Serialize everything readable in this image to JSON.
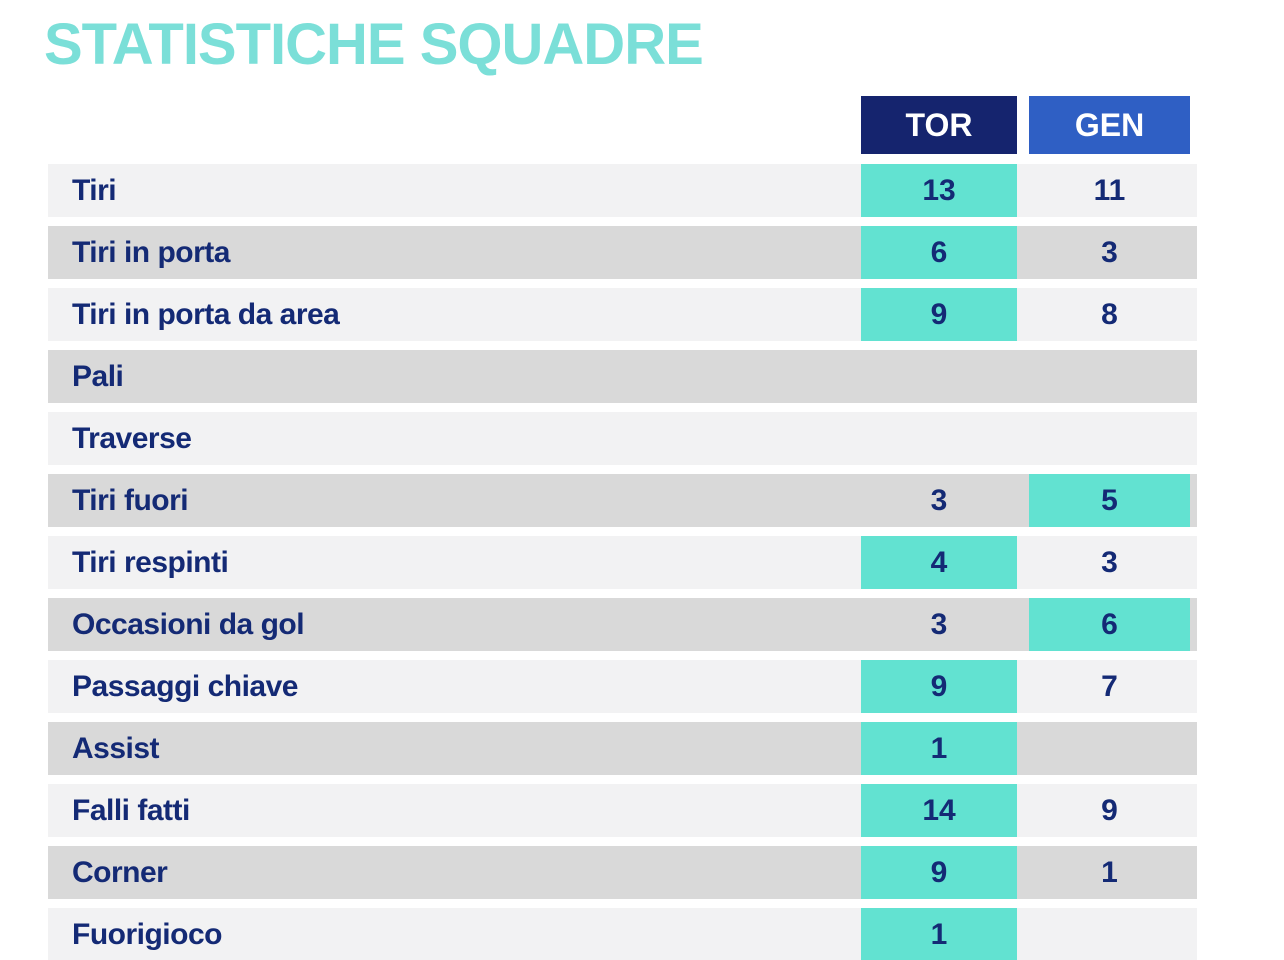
{
  "title": "STATISTICHE SQUADRE",
  "columns": {
    "home": "TOR",
    "away": "GEN"
  },
  "colors": {
    "title_teal": "#7BDFD8",
    "highlight_teal": "#62E2D1",
    "navy_text": "#142A75",
    "tor_header_bg": "#15246E",
    "gen_header_bg": "#2F5FC4",
    "row_light": "#F2F2F3",
    "row_dark": "#D9D9D9"
  },
  "chart_data": {
    "type": "table",
    "title": "STATISTICHE SQUADRE",
    "columns": [
      "TOR",
      "GEN"
    ],
    "legend_note": "teal highlight marks the higher value",
    "rows": [
      {
        "label": "Tiri",
        "tor": "13",
        "gen": "11",
        "highlight": "tor"
      },
      {
        "label": "Tiri in porta",
        "tor": "6",
        "gen": "3",
        "highlight": "tor"
      },
      {
        "label": "Tiri in porta da area",
        "tor": "9",
        "gen": "8",
        "highlight": "tor"
      },
      {
        "label": "Pali",
        "tor": "",
        "gen": "",
        "highlight": "none"
      },
      {
        "label": "Traverse",
        "tor": "",
        "gen": "",
        "highlight": "none"
      },
      {
        "label": "Tiri fuori",
        "tor": "3",
        "gen": "5",
        "highlight": "gen"
      },
      {
        "label": "Tiri respinti",
        "tor": "4",
        "gen": "3",
        "highlight": "tor"
      },
      {
        "label": "Occasioni da gol",
        "tor": "3",
        "gen": "6",
        "highlight": "gen"
      },
      {
        "label": "Passaggi chiave",
        "tor": "9",
        "gen": "7",
        "highlight": "tor"
      },
      {
        "label": "Assist",
        "tor": "1",
        "gen": "",
        "highlight": "tor"
      },
      {
        "label": "Falli fatti",
        "tor": "14",
        "gen": "9",
        "highlight": "tor"
      },
      {
        "label": "Corner",
        "tor": "9",
        "gen": "1",
        "highlight": "tor"
      },
      {
        "label": "Fuorigioco",
        "tor": "1",
        "gen": "",
        "highlight": "tor"
      }
    ]
  }
}
